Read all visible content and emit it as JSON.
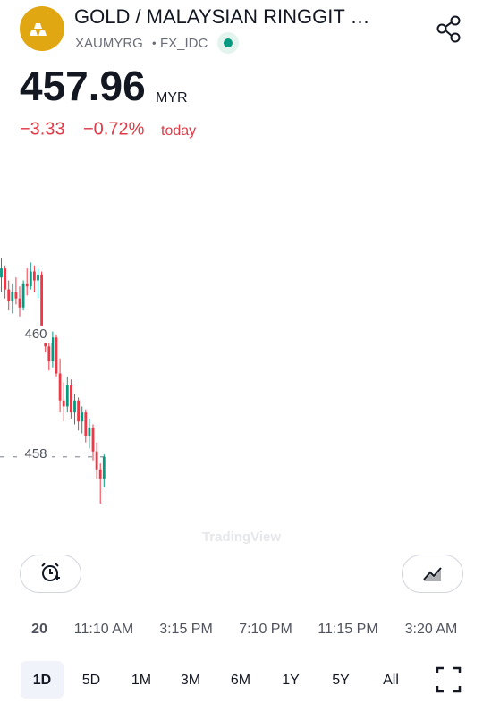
{
  "header": {
    "title": "GOLD / MALAYSIAN RINGGIT …",
    "symbol": "XAUMYRG",
    "separator": "•",
    "exchange": "FX_IDC"
  },
  "quote": {
    "price": "457.96",
    "currency": "MYR",
    "change": "−3.33",
    "change_percent": "−0.72%",
    "period": "today"
  },
  "chart_data": {
    "type": "candlestick",
    "up_color": "#089981",
    "down_color": "#f23645",
    "ylim": [
      456.63,
      463.04
    ],
    "yticks": [
      460,
      458
    ],
    "watermark": "TradingView",
    "candles": [
      {
        "open": 460.95,
        "high": 461.28,
        "low": 460.7,
        "close": 461.1
      },
      {
        "open": 461.1,
        "high": 461.15,
        "low": 460.6,
        "close": 460.75
      },
      {
        "open": 460.75,
        "high": 460.9,
        "low": 460.4,
        "close": 460.55
      },
      {
        "open": 460.55,
        "high": 460.85,
        "low": 460.35,
        "close": 460.7
      },
      {
        "open": 460.7,
        "high": 460.95,
        "low": 460.5,
        "close": 460.6
      },
      {
        "open": 460.6,
        "high": 460.8,
        "low": 460.3,
        "close": 460.45
      },
      {
        "open": 460.45,
        "high": 460.9,
        "low": 460.4,
        "close": 460.85
      },
      {
        "open": 460.85,
        "high": 461.1,
        "low": 460.65,
        "close": 460.8
      },
      {
        "open": 460.8,
        "high": 461.2,
        "low": 460.75,
        "close": 461.05
      },
      {
        "open": 461.05,
        "high": 461.15,
        "low": 460.7,
        "close": 460.9
      },
      {
        "open": 460.9,
        "high": 461.1,
        "low": 460.6,
        "close": 461.0
      },
      {
        "open": 461.0,
        "high": 461.05,
        "low": 459.85,
        "close": 459.9
      },
      {
        "open": 459.9,
        "high": 460.1,
        "low": 459.7,
        "close": 459.8
      },
      {
        "open": 459.8,
        "high": 459.95,
        "low": 459.4,
        "close": 459.55
      },
      {
        "open": 459.55,
        "high": 460.05,
        "low": 459.45,
        "close": 459.95
      },
      {
        "open": 459.95,
        "high": 460.0,
        "low": 459.3,
        "close": 459.35
      },
      {
        "open": 459.35,
        "high": 459.6,
        "low": 458.7,
        "close": 458.9
      },
      {
        "open": 458.9,
        "high": 459.2,
        "low": 458.55,
        "close": 458.8
      },
      {
        "open": 458.8,
        "high": 459.3,
        "low": 458.7,
        "close": 459.15
      },
      {
        "open": 459.15,
        "high": 459.25,
        "low": 458.6,
        "close": 458.7
      },
      {
        "open": 458.7,
        "high": 459.0,
        "low": 458.5,
        "close": 458.9
      },
      {
        "open": 458.9,
        "high": 458.95,
        "low": 458.4,
        "close": 458.55
      },
      {
        "open": 458.55,
        "high": 458.8,
        "low": 458.35,
        "close": 458.7
      },
      {
        "open": 458.7,
        "high": 458.75,
        "low": 458.2,
        "close": 458.3
      },
      {
        "open": 458.3,
        "high": 458.6,
        "low": 458.1,
        "close": 458.45
      },
      {
        "open": 458.45,
        "high": 458.5,
        "low": 457.9,
        "close": 458.05
      },
      {
        "open": 458.05,
        "high": 458.2,
        "low": 457.6,
        "close": 457.75
      },
      {
        "open": 457.75,
        "high": 457.85,
        "low": 457.18,
        "close": 457.6
      },
      {
        "open": 457.6,
        "high": 458.0,
        "low": 457.45,
        "close": 457.96
      }
    ],
    "time_labels": [
      "20",
      "11:10 AM",
      "3:15 PM",
      "7:10 PM",
      "11:15 PM",
      "3:20 AM"
    ]
  },
  "ranges": {
    "items": [
      "1D",
      "5D",
      "1M",
      "3M",
      "6M",
      "1Y",
      "5Y",
      "All"
    ],
    "selected": 0
  }
}
